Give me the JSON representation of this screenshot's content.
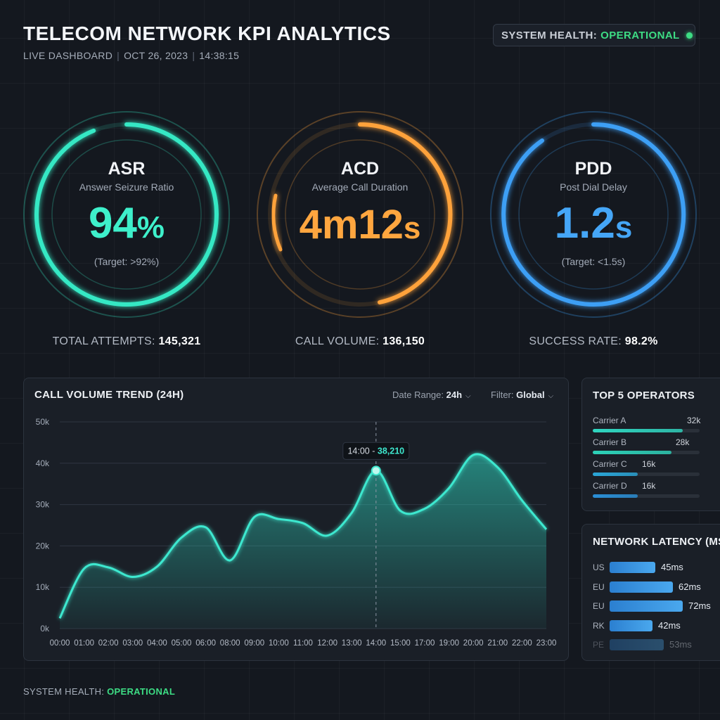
{
  "header": {
    "title": "TELECOM NETWORK KPI ANALYTICS",
    "live": "LIVE DASHBOARD",
    "date": "OCT 26, 2023",
    "time": "14:38:15",
    "sep": "|"
  },
  "system_health": {
    "label": "SYSTEM HEALTH:",
    "status": "OPERATIONAL",
    "color": "#3ddc84"
  },
  "kpis": [
    {
      "name": "ASR",
      "description": "Answer Seizure Ratio",
      "value_main": "94",
      "value_unit": "%",
      "target": "(Target: >92%)",
      "foot_label": "TOTAL ATTEMPTS:",
      "foot_value": "145,321",
      "color": "#36e8c4",
      "fill": 0.94
    },
    {
      "name": "ACD",
      "description": "Average Call Duration",
      "value_main": "4m12",
      "value_unit": "s",
      "target": "",
      "foot_label": "CALL VOLUME:",
      "foot_value": "136,150",
      "color": "#ffa23a"
    },
    {
      "name": "PDD",
      "description": "Post Dial Delay",
      "value_main": "1.2",
      "value_unit": "s",
      "target": "(Target: <1.5s)",
      "foot_label": "SUCCESS RATE:",
      "foot_value": "98.2%",
      "color": "#3d9ff5"
    }
  ],
  "trend": {
    "title": "CALL VOLUME TREND (24H)",
    "date_range_label": "Date Range:",
    "date_range_value": "24h",
    "filter_label": "Filter:",
    "filter_value": "Global",
    "tooltip_time": "14:00",
    "tooltip_sep": "-",
    "tooltip_value": "38,210"
  },
  "chart_data": {
    "type": "area",
    "title": "CALL VOLUME TREND (24H)",
    "xlabel": "",
    "ylabel": "",
    "ylim": [
      0,
      50000
    ],
    "y_tick_values": [
      0,
      10000,
      20000,
      30000,
      40000,
      50000
    ],
    "y_tick_labels": [
      "0k",
      "10k",
      "20k",
      "30k",
      "40k",
      "50k"
    ],
    "x": [
      "00:00",
      "01:00",
      "02:00",
      "03:00",
      "04:00",
      "05:00",
      "06:00",
      "08:00",
      "09:00",
      "10:00",
      "11:00",
      "12:00",
      "13:00",
      "14:00",
      "15:00",
      "17:00",
      "19:00",
      "20:00",
      "21:00",
      "22:00",
      "23:00"
    ],
    "series": [
      {
        "values": [
          2500,
          14500,
          14800,
          12500,
          15000,
          22000,
          24500,
          16500,
          27000,
          26500,
          25500,
          22500,
          28000,
          38210,
          28500,
          29000,
          34000,
          42000,
          39000,
          31000,
          24000
        ]
      }
    ],
    "highlight_index": 13,
    "grid": true,
    "color": "#3ee8cf"
  },
  "operators": {
    "title": "TOP 5 OPERATORS",
    "items": [
      {
        "name": "Carrier A",
        "value_label": "32k",
        "value": 32000
      },
      {
        "name": "Carrier B",
        "value_label": "28k",
        "value": 28000
      },
      {
        "name": "Carrier C",
        "value_label": "16k",
        "value": 16000
      },
      {
        "name": "Carrier D",
        "value_label": "16k",
        "value": 16000
      }
    ],
    "max": 38000
  },
  "latency": {
    "title": "NETWORK LATENCY (MS)",
    "unit": "ms",
    "items": [
      {
        "region": "US",
        "value": 45,
        "label": "45ms"
      },
      {
        "region": "EU",
        "value": 62,
        "label": "62ms"
      },
      {
        "region": "EU",
        "value": 72,
        "label": "72ms"
      },
      {
        "region": "RK",
        "value": 42,
        "label": "42ms"
      },
      {
        "region": "PE",
        "value": 53,
        "label": "53ms"
      }
    ]
  },
  "footer": {
    "label": "SYSTEM HEALTH:",
    "status": "OPERATIONAL"
  }
}
